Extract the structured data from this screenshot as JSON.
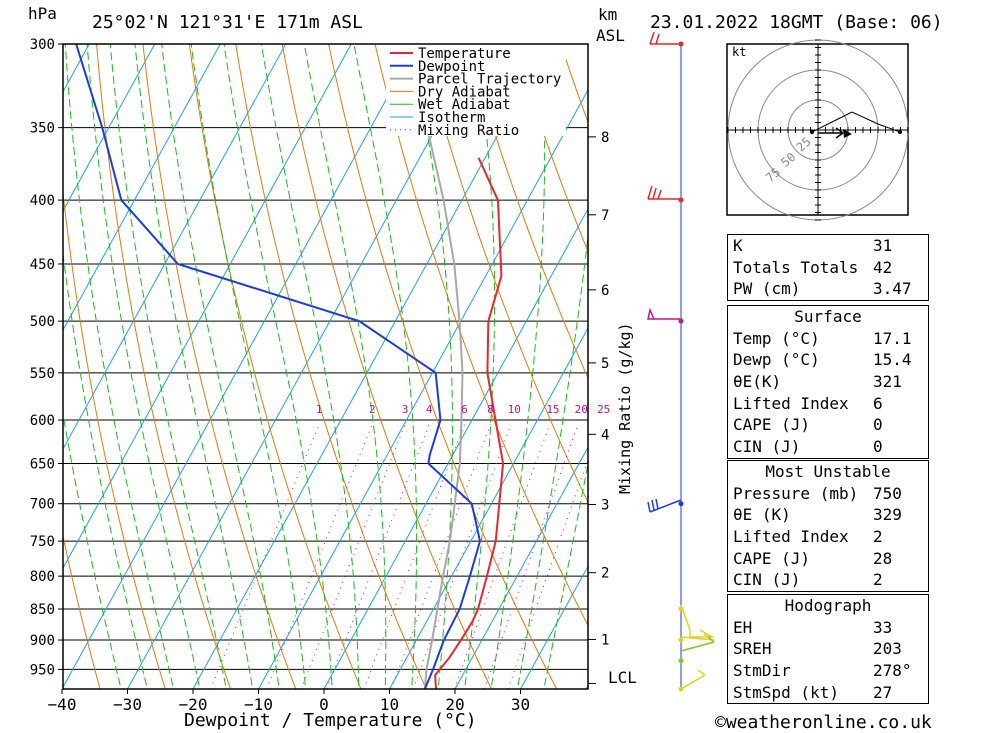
{
  "header": {
    "hpa_unit": "hPa",
    "location": "25°02'N 121°31'E 171m ASL",
    "km_unit": "km",
    "asl": "ASL",
    "datetime": "23.01.2022 18GMT (Base: 06)"
  },
  "footer": {
    "xlabel": "Dewpoint / Temperature (°C)",
    "copyright": "©weatheronline.co.uk",
    "mixing_ratio_axis": "Mixing Ratio (g/kg)",
    "lcl": "LCL",
    "hodo_unit": "kt"
  },
  "colors": {
    "temperature": "#e8262b",
    "dewpoint": "#1c3ddb",
    "parcel": "#a8a8a8",
    "dry_adiabat": "#e07a10",
    "wet_adiabat": "#1db81d",
    "isotherm": "#22a0e8",
    "mixing_ratio": "#c0148a"
  },
  "chart_data": [
    {
      "type": "line",
      "title": "Skew-T log-P diagram",
      "xlabel": "Dewpoint / Temperature (°C)",
      "ylabel": "hPa",
      "pressure_levels": [
        300,
        350,
        400,
        450,
        500,
        550,
        600,
        650,
        700,
        750,
        800,
        850,
        900,
        950
      ],
      "x_ticks": [
        -40,
        -30,
        -20,
        -10,
        0,
        10,
        20,
        30
      ],
      "xlim": [
        -40,
        40
      ],
      "ylim": [
        985,
        300
      ],
      "legend": [
        "Temperature",
        "Dewpoint",
        "Parcel Trajectory",
        "Dry Adiabat",
        "Wet Adiabat",
        "Isotherm",
        "Mixing Ratio"
      ],
      "legend_position": "top-right",
      "height_km_ticks": [
        1,
        2,
        3,
        4,
        5,
        6,
        7,
        8
      ],
      "mixing_ratio_labels": [
        "1",
        "2",
        "3",
        "4",
        "6",
        "8",
        "10",
        "15",
        "20",
        "25"
      ],
      "series": [
        {
          "name": "Temperature",
          "points": [
            [
              985,
              17.1
            ],
            [
              960,
              15.8
            ],
            [
              930,
              16.5
            ],
            [
              900,
              16.8
            ],
            [
              870,
              17.0
            ],
            [
              850,
              16.8
            ],
            [
              800,
              15.4
            ],
            [
              750,
              13.8
            ],
            [
              700,
              11.2
            ],
            [
              650,
              8.4
            ],
            [
              600,
              3.6
            ],
            [
              550,
              -1.6
            ],
            [
              500,
              -5.8
            ],
            [
              460,
              -7.6
            ],
            [
              400,
              -14.5
            ],
            [
              370,
              -21.0
            ]
          ]
        },
        {
          "name": "Dewpoint",
          "points": [
            [
              985,
              15.4
            ],
            [
              950,
              15.0
            ],
            [
              900,
              14.2
            ],
            [
              850,
              14.0
            ],
            [
              800,
              12.8
            ],
            [
              750,
              11.4
            ],
            [
              700,
              7.0
            ],
            [
              650,
              -3.0
            ],
            [
              640,
              -3.5
            ],
            [
              600,
              -4.8
            ],
            [
              550,
              -9.5
            ],
            [
              500,
              -25.5
            ],
            [
              450,
              -58.0
            ],
            [
              400,
              -72.0
            ],
            [
              350,
              -81.0
            ],
            [
              300,
              -92.0
            ]
          ]
        },
        {
          "name": "Parcel Trajectory",
          "points": [
            [
              985,
              15.4
            ],
            [
              950,
              14.0
            ],
            [
              900,
              12.4
            ],
            [
              850,
              10.6
            ],
            [
              800,
              8.7
            ],
            [
              750,
              6.8
            ],
            [
              700,
              4.4
            ],
            [
              650,
              1.8
            ],
            [
              600,
              -1.6
            ],
            [
              550,
              -5.4
            ],
            [
              500,
              -10.2
            ],
            [
              450,
              -15.8
            ],
            [
              400,
              -22.8
            ],
            [
              350,
              -31.4
            ],
            [
              300,
              -42.0
            ]
          ]
        }
      ]
    },
    {
      "type": "scatter",
      "title": "Hodograph",
      "units": "kt",
      "ring_labels": [
        "25",
        "50",
        "75"
      ]
    }
  ],
  "indices": {
    "basic": [
      {
        "key": "K",
        "value": "31"
      },
      {
        "key": "Totals Totals",
        "value": "42"
      },
      {
        "key": "PW (cm)",
        "value": "3.47"
      }
    ],
    "surface_title": "Surface",
    "surface": [
      {
        "key": "Temp (°C)",
        "value": "17.1"
      },
      {
        "key": "Dewp (°C)",
        "value": "15.4"
      },
      {
        "key": "θE(K)",
        "value": "321"
      },
      {
        "key": "Lifted Index",
        "value": "6"
      },
      {
        "key": "CAPE (J)",
        "value": "0"
      },
      {
        "key": "CIN (J)",
        "value": "0"
      }
    ],
    "mu_title": "Most Unstable",
    "most_unstable": [
      {
        "key": "Pressure (mb)",
        "value": "750"
      },
      {
        "key": "θE (K)",
        "value": "329"
      },
      {
        "key": "Lifted Index",
        "value": "2"
      },
      {
        "key": "CAPE (J)",
        "value": "28"
      },
      {
        "key": "CIN (J)",
        "value": "2"
      }
    ],
    "hodo_title": "Hodograph",
    "hodograph": [
      {
        "key": "EH",
        "value": "33"
      },
      {
        "key": "SREH",
        "value": "203"
      },
      {
        "key": "StmDir",
        "value": "278°"
      },
      {
        "key": "StmSpd (kt)",
        "value": "27"
      }
    ]
  }
}
